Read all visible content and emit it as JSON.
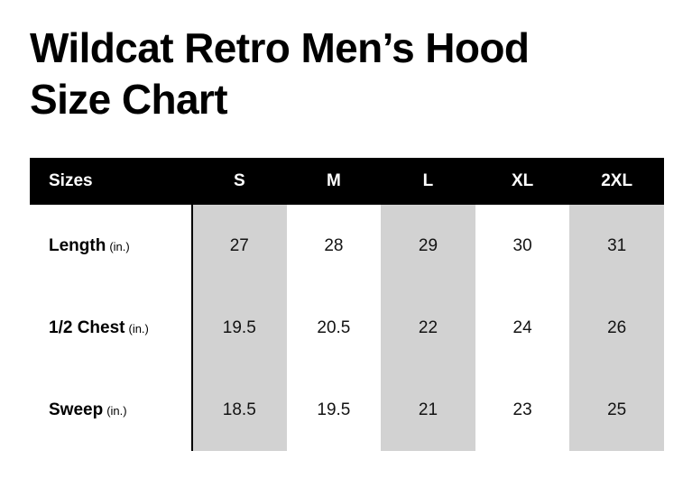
{
  "title": {
    "line1": "Wildcat Retro Men’s Hood",
    "line2": "Size Chart"
  },
  "table": {
    "header": {
      "label": "Sizes",
      "sizes": [
        "S",
        "M",
        "L",
        "XL",
        "2XL"
      ]
    },
    "rows": [
      {
        "label": "Length",
        "unit": "(in.)",
        "values": [
          "27",
          "28",
          "29",
          "30",
          "31"
        ]
      },
      {
        "label": "1/2 Chest",
        "unit": "(in.)",
        "values": [
          "19.5",
          "20.5",
          "22",
          "24",
          "26"
        ]
      },
      {
        "label": "Sweep",
        "unit": "(in.)",
        "values": [
          "18.5",
          "19.5",
          "21",
          "23",
          "25"
        ]
      }
    ],
    "striped_size_columns": [
      "S",
      "L",
      "2XL"
    ]
  },
  "chart_data": {
    "type": "table",
    "title": "Wildcat Retro Men’s Hood Size Chart",
    "columns": [
      "Sizes",
      "S",
      "M",
      "L",
      "XL",
      "2XL"
    ],
    "rows": [
      [
        "Length (in.)",
        27,
        28,
        29,
        30,
        31
      ],
      [
        "1/2 Chest (in.)",
        19.5,
        20.5,
        22,
        24,
        26
      ],
      [
        "Sweep (in.)",
        18.5,
        19.5,
        21,
        23,
        25
      ]
    ],
    "layout": "black header row; alternating gray column stripes on S, L, 2XL; vertical divider after label column; no horizontal row lines"
  },
  "theme": {
    "page_bg": "#ffffff",
    "header_bg": "#000000",
    "header_text": "#ffffff",
    "stripe": "#d2d2d2",
    "ink": "#131313",
    "divider": "#000000"
  }
}
